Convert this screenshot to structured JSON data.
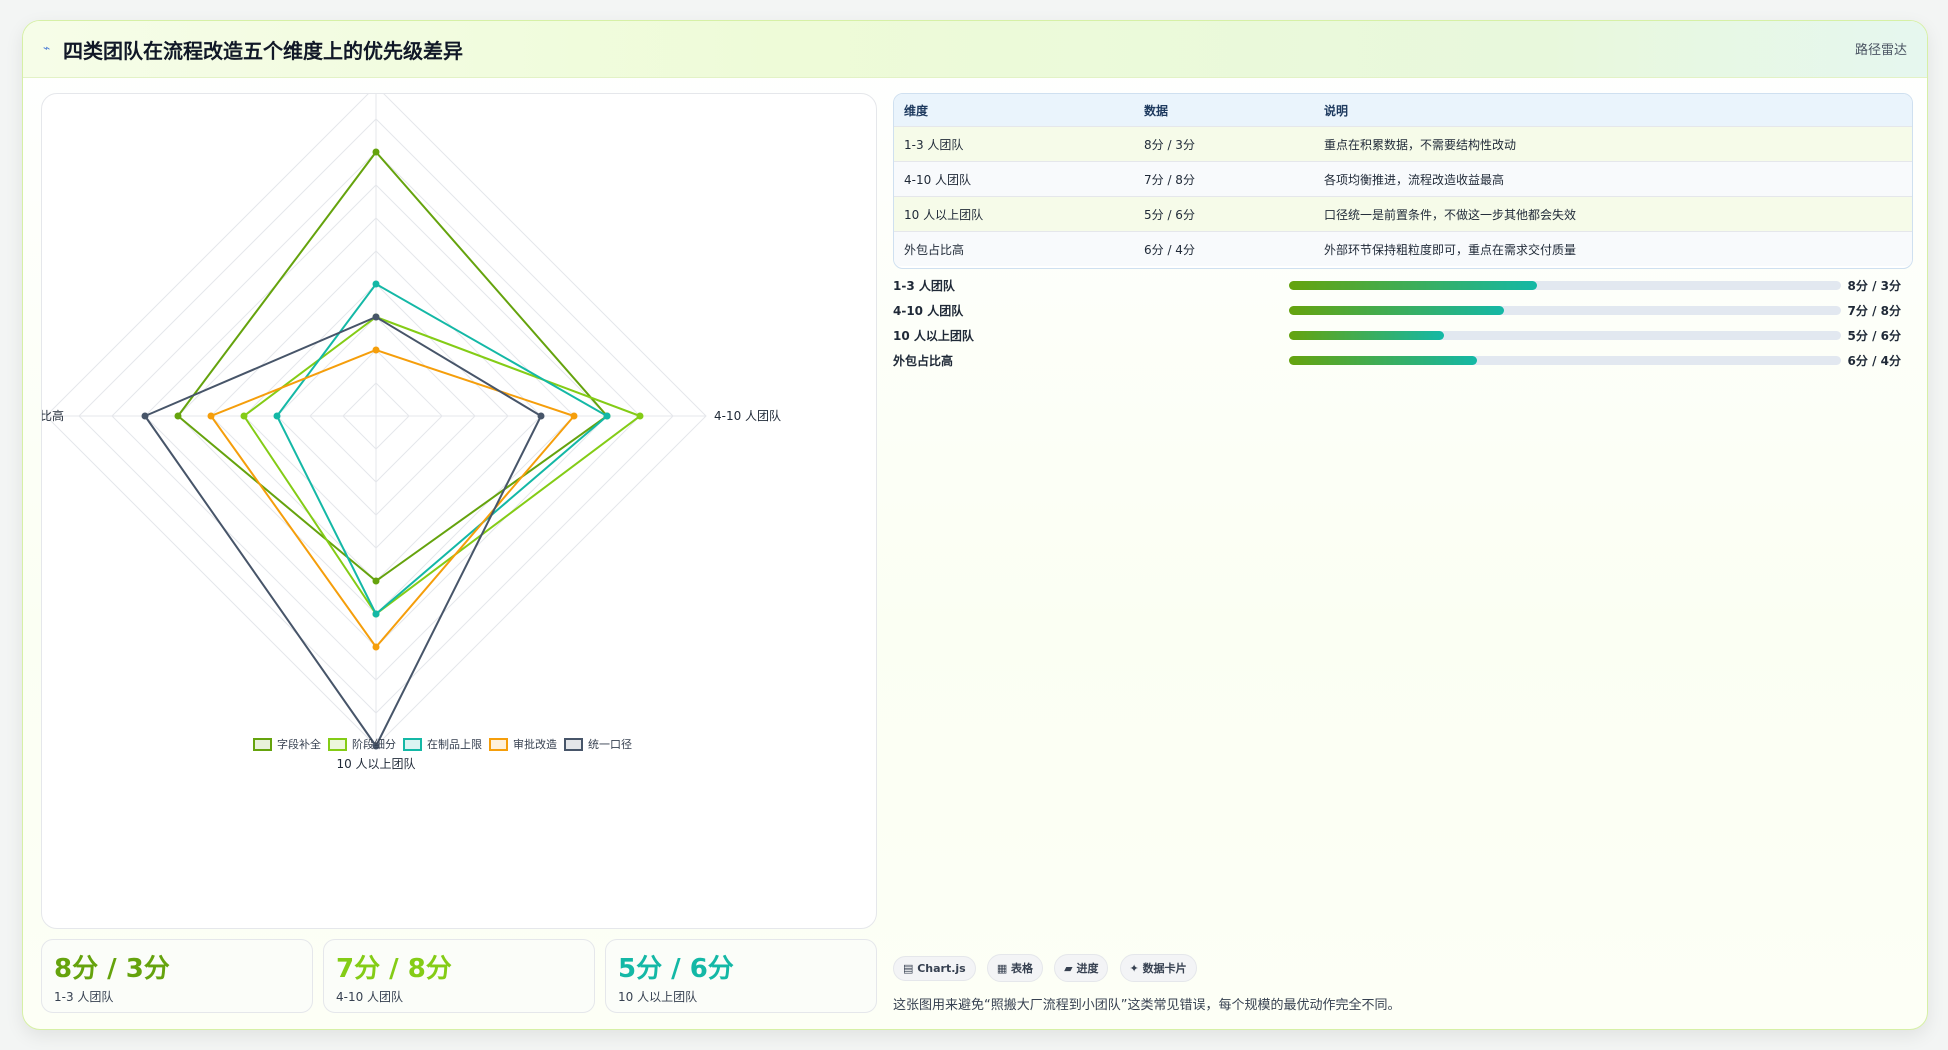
{
  "header": {
    "title": "四类团队在流程改造五个维度上的优先级差异",
    "tag": "路径雷达"
  },
  "chart_data": {
    "type": "radar",
    "axes": [
      "1-3 人团队",
      "4-10 人团队",
      "10 人以上团队",
      "外包占比高"
    ],
    "rmax": 10,
    "series": [
      {
        "name": "字段补全",
        "color": "#65a30d",
        "values": [
          8,
          7,
          5,
          6
        ]
      },
      {
        "name": "阶段细分",
        "color": "#84cc16",
        "values": [
          3,
          8,
          6,
          4
        ]
      },
      {
        "name": "在制品上限",
        "color": "#14b8a6",
        "values": [
          4,
          7,
          6,
          3
        ]
      },
      {
        "name": "审批改造",
        "color": "#f59e0b",
        "values": [
          2,
          6,
          7,
          5
        ]
      },
      {
        "name": "统一口径",
        "color": "#475569",
        "values": [
          3,
          5,
          10,
          7
        ]
      }
    ]
  },
  "table": {
    "headers": [
      "维度",
      "数据",
      "说明"
    ],
    "rows": [
      [
        "1-3 人团队",
        "8分 / 3分",
        "重点在积累数据，不需要结构性改动"
      ],
      [
        "4-10 人团队",
        "7分 / 8分",
        "各项均衡推进，流程改造收益最高"
      ],
      [
        "10 人以上团队",
        "5分 / 6分",
        "口径统一是前置条件，不做这一步其他都会失效"
      ],
      [
        "外包占比高",
        "6分 / 4分",
        "外部环节保持粗粒度即可，重点在需求交付质量"
      ]
    ]
  },
  "progress": [
    {
      "label": "1-3 人团队",
      "value": "8分 / 3分",
      "fraction": 0.45
    },
    {
      "label": "4-10 人团队",
      "value": "7分 / 8分",
      "fraction": 0.39
    },
    {
      "label": "10 人以上团队",
      "value": "5分 / 6分",
      "fraction": 0.28
    },
    {
      "label": "外包占比高",
      "value": "6分 / 4分",
      "fraction": 0.34
    }
  ],
  "kpis": [
    {
      "value": "8分 / 3分",
      "label": "1-3 人团队",
      "color": "#65a30d"
    },
    {
      "value": "7分 / 8分",
      "label": "4-10 人团队",
      "color": "#84cc16"
    },
    {
      "value": "5分 / 6分",
      "label": "10 人以上团队",
      "color": "#14b8a6"
    }
  ],
  "chips": [
    "▤ Chart.js",
    "▦ 表格",
    "▰ 进度",
    "✦ 数据卡片"
  ],
  "note": "这张图用来避免“照搬大厂流程到小团队”这类常见错误，每个规模的最优动作完全不同。"
}
